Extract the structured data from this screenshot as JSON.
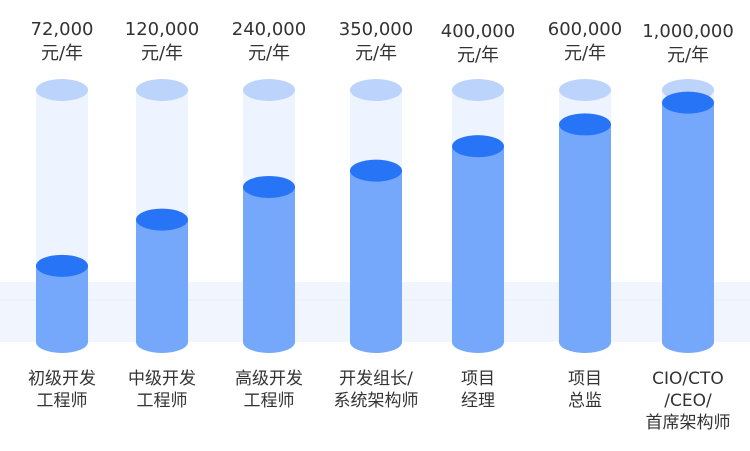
{
  "chart_data": {
    "type": "bar",
    "unit_label": "元/年",
    "categories": [
      [
        "初级开发",
        "工程师"
      ],
      [
        "中级开发",
        "工程师"
      ],
      [
        "高级开发",
        "工程师"
      ],
      [
        "开发组长/",
        "系统架构师"
      ],
      [
        "项目",
        "经理"
      ],
      [
        "项目",
        "总监"
      ],
      [
        "CIO/CTO",
        "/CEO/",
        "首席架构师"
      ]
    ],
    "value_labels": [
      "72,000",
      "120,000",
      "240,000",
      "350,000",
      "400,000",
      "600,000",
      "1,000,000"
    ],
    "fill_levels": [
      0.28,
      0.45,
      0.57,
      0.63,
      0.72,
      0.8,
      0.88
    ],
    "title": "",
    "xlabel": "",
    "ylabel": "",
    "grid": false,
    "legend": "none",
    "colors": {
      "bar_body": "#75a7fb",
      "bar_top": "#2775f6",
      "track": "#eef4ff",
      "track_cap": "#bcd4fc",
      "floor": "#f1f5fd"
    }
  }
}
